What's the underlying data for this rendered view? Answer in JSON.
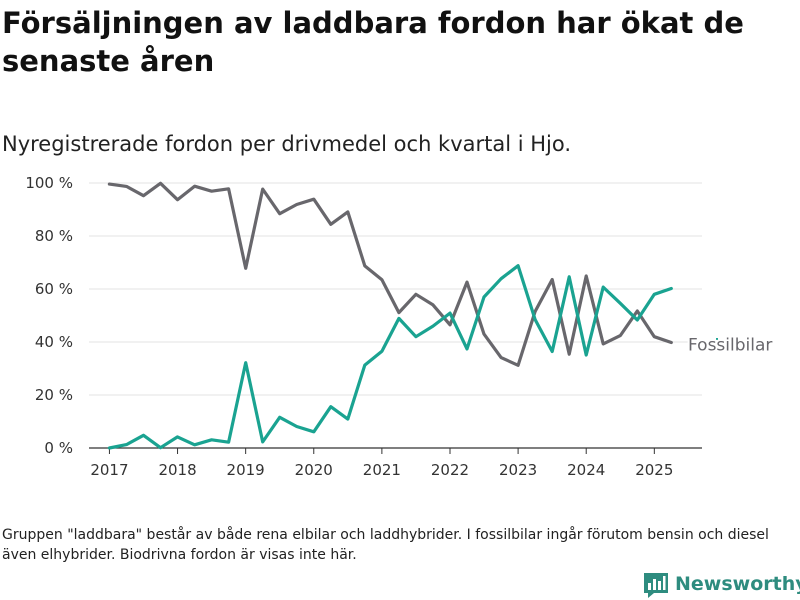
{
  "header": {
    "title": "Försäljningen av laddbara fordon har ökat de senaste åren",
    "subtitle": "Nyregistrerade fordon per drivmedel och kvartal i Hjo."
  },
  "footer": {
    "note": "Gruppen \"laddbara\" består av både rena elbilar och laddhybrider. I fossilbilar ingår förutom bensin och diesel även elhybrider. Biodrivna fordon är visas inte här.",
    "brand": "Newsworthy"
  },
  "colors": {
    "laddbara": "#1aa391",
    "fossilbilar": "#68676c",
    "grid": "#e3e3e3",
    "axis": "#333333",
    "brand": "#2e8c7f"
  },
  "chart_data": {
    "type": "line",
    "title": "",
    "xlabel": "",
    "ylabel": "",
    "xlim": [
      2016.7,
      2025.7
    ],
    "ylim": [
      0,
      100
    ],
    "yticks": [
      0,
      20,
      40,
      60,
      80,
      100
    ],
    "ytick_labels": [
      "0 %",
      "20 %",
      "40 %",
      "60 %",
      "80 %",
      "100 %"
    ],
    "xticks": [
      2017,
      2018,
      2019,
      2020,
      2021,
      2022,
      2023,
      2024,
      2025
    ],
    "xtick_labels": [
      "2017",
      "2018",
      "2019",
      "2020",
      "2021",
      "2022",
      "2023",
      "2024",
      "2025"
    ],
    "grid": true,
    "x": [
      2017.0,
      2017.25,
      2017.5,
      2017.75,
      2018.0,
      2018.25,
      2018.5,
      2018.75,
      2019.0,
      2019.25,
      2019.5,
      2019.75,
      2020.0,
      2020.25,
      2020.5,
      2020.75,
      2021.0,
      2021.25,
      2021.5,
      2021.75,
      2022.0,
      2022.25,
      2022.5,
      2022.75,
      2023.0,
      2023.25,
      2023.5,
      2023.75,
      2024.0,
      2024.25,
      2024.5,
      2024.75,
      2025.0,
      2025.25
    ],
    "series": [
      {
        "name": "Fossilbilar",
        "color_key": "fossilbilar",
        "values": [
          99.6,
          98.7,
          95.2,
          99.9,
          93.7,
          98.8,
          96.9,
          97.8,
          67.8,
          97.7,
          88.4,
          91.9,
          93.9,
          84.4,
          89.1,
          68.7,
          63.5,
          51.1,
          58.0,
          54.0,
          46.5,
          62.6,
          43.0,
          34.1,
          31.2,
          51.5,
          63.6,
          35.4,
          64.9,
          39.3,
          42.4,
          51.7,
          42.0,
          39.8
        ]
      },
      {
        "name": "",
        "color_key": "laddbara",
        "values": [
          0.0,
          1.3,
          4.8,
          0.1,
          4.2,
          1.2,
          3.1,
          2.2,
          32.2,
          2.3,
          11.6,
          8.1,
          6.1,
          15.6,
          10.9,
          31.3,
          36.5,
          48.9,
          42.0,
          46.0,
          50.9,
          37.4,
          57.0,
          63.9,
          68.8,
          48.5,
          36.4,
          64.6,
          35.1,
          60.7,
          54.6,
          48.3,
          58.0,
          60.2
        ]
      }
    ],
    "annotations": [
      {
        "text": "Fossilbilar",
        "series": "Fossilbilar"
      }
    ]
  }
}
